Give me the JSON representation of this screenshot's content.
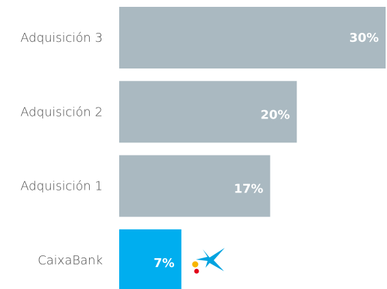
{
  "chart_data": {
    "type": "bar",
    "orientation": "horizontal",
    "categories": [
      "Adquisición 3",
      "Adquisición 2",
      "Adquisición 1",
      "CaixaBank"
    ],
    "values": [
      30,
      20,
      17,
      7
    ],
    "value_labels": [
      "30%",
      "20%",
      "17%",
      "7%"
    ],
    "colors": [
      "#aab9c1",
      "#aab9c1",
      "#aab9c1",
      "#00aeef"
    ]
  }
}
